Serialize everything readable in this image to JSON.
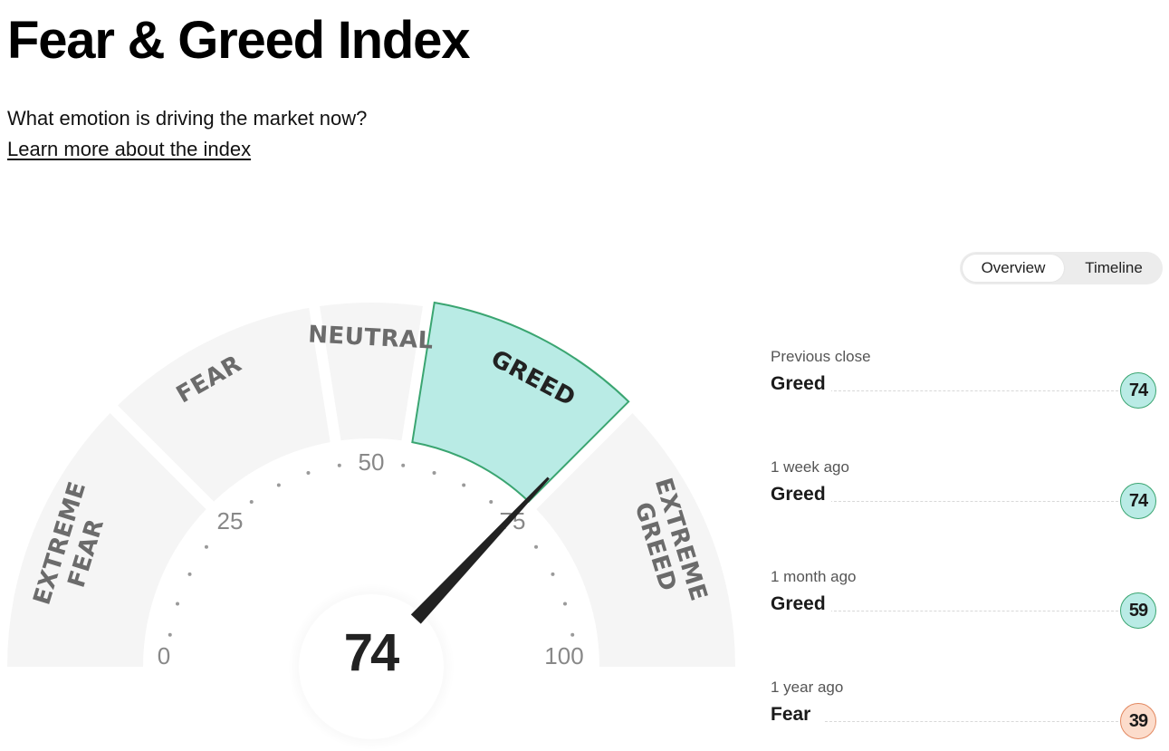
{
  "page": {
    "title": "Fear & Greed Index",
    "subtitle": "What emotion is driving the market now?",
    "learn_more": "Learn more about the index"
  },
  "view_toggle": {
    "options": [
      "Overview",
      "Timeline"
    ],
    "active": "Overview"
  },
  "gauge": {
    "value": 74,
    "value_label": "74",
    "min": 0,
    "max": 100,
    "active_zone": "GREED",
    "zones": [
      {
        "label": "EXTREME\nFEAR",
        "range": [
          0,
          25
        ]
      },
      {
        "label": "FEAR",
        "range": [
          25,
          45
        ]
      },
      {
        "label": "NEUTRAL",
        "range": [
          45,
          55
        ]
      },
      {
        "label": "GREED",
        "range": [
          55,
          75
        ]
      },
      {
        "label": "EXTREME\nGREED",
        "range": [
          75,
          100
        ]
      }
    ],
    "ticks": [
      "0",
      "25",
      "50",
      "75",
      "100"
    ],
    "zone_text": {
      "extreme_fear_1": "EXTREME",
      "extreme_fear_2": "FEAR",
      "fear": "FEAR",
      "neutral": "NEUTRAL",
      "greed": "GREED",
      "extreme_greed_1": "EXTREME",
      "extreme_greed_2": "GREED"
    },
    "tick_labels": {
      "t0": "0",
      "t25": "25",
      "t50": "50",
      "t75": "75",
      "t100": "100"
    }
  },
  "colors": {
    "greed_fill": "#b9ebe5",
    "greed_stroke": "#3aa571",
    "zone_fill": "#f5f5f5",
    "fear_badge_fill": "#fcdccb",
    "fear_badge_stroke": "#e2875f",
    "needle": "#222222"
  },
  "history": [
    {
      "period": "Previous close",
      "rating": "Greed",
      "value": "74"
    },
    {
      "period": "1 week ago",
      "rating": "Greed",
      "value": "74"
    },
    {
      "period": "1 month ago",
      "rating": "Greed",
      "value": "59"
    },
    {
      "period": "1 year ago",
      "rating": "Fear",
      "value": "39"
    }
  ]
}
